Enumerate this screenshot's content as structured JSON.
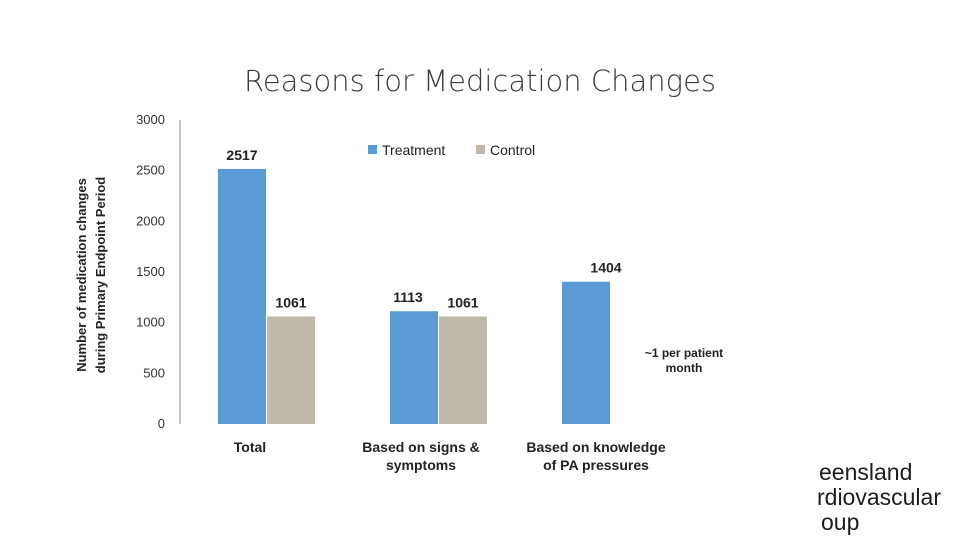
{
  "chart_data": {
    "type": "bar",
    "title": "Reasons for Medication Changes",
    "ylabel": "Number of medication changes during Primary Endpoint Period",
    "ylabel_lines": [
      "Number of medication changes",
      "during Primary Endpoint Period"
    ],
    "categories": [
      "Total",
      "Based on signs & symptoms",
      "Based on knowledge of PA pressures"
    ],
    "category_lines": [
      [
        "Total"
      ],
      [
        "Based on signs &",
        "symptoms"
      ],
      [
        "Based on knowledge",
        "of PA pressures"
      ]
    ],
    "series": [
      {
        "name": "Treatment",
        "color": "#5b9bd5",
        "values": [
          2517,
          1113,
          1404
        ]
      },
      {
        "name": "Control",
        "color": "#c0b8a8",
        "values": [
          1061,
          1061,
          null
        ]
      }
    ],
    "ylim": [
      0,
      3000
    ],
    "yticks": [
      0,
      500,
      1000,
      1500,
      2000,
      2500,
      3000
    ],
    "legend_position": "top",
    "grid": false,
    "annotation": [
      "~1 per patient",
      "month"
    ]
  },
  "footer_text": [
    "eensland",
    "rdiovascular",
    "oup"
  ]
}
